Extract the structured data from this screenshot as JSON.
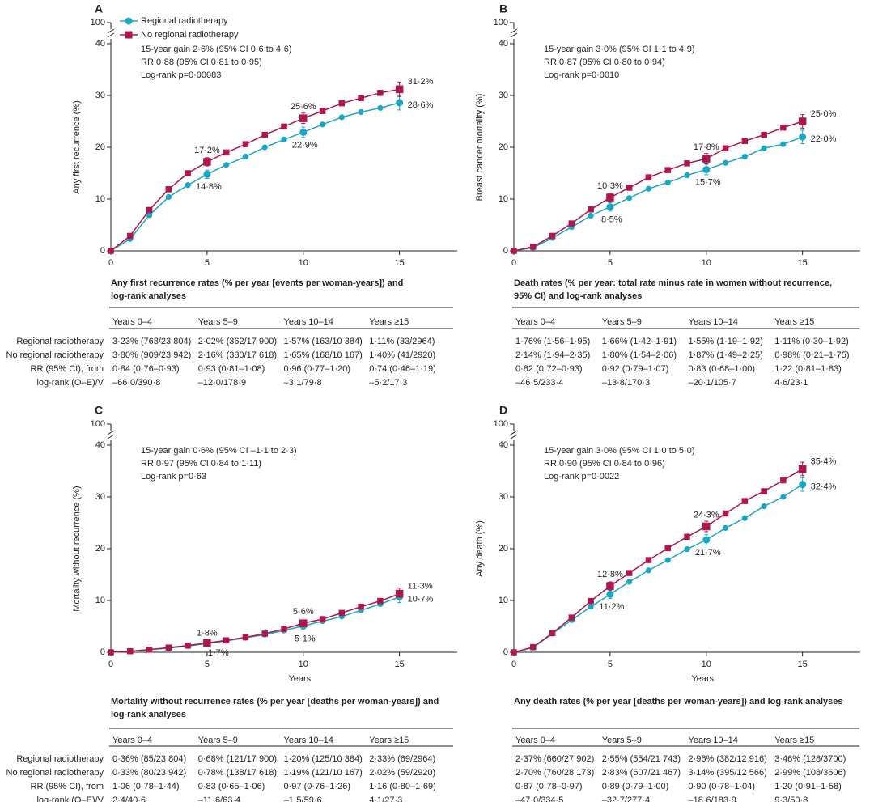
{
  "legend": {
    "series_a": "Regional radiotherapy",
    "series_b": "No regional radiotherapy"
  },
  "colors": {
    "series_a": "#1ba6c6",
    "series_b": "#b0154e",
    "text": "#231f20"
  },
  "tables_common": {
    "headers": [
      "Years 0–4",
      "Years 5–9",
      "Years 10–14",
      "Years ≥15"
    ],
    "row_labels": [
      "Regional radiotherapy",
      "No regional radiotherapy",
      "RR (95% CI), from",
      "log-rank (O–E)/V"
    ]
  },
  "chart_data": [
    {
      "panel": "A",
      "type": "line",
      "ylabel": "Any first recurrence (%)",
      "xlabel": "",
      "xlim": [
        0,
        18
      ],
      "ylim": [
        0,
        40
      ],
      "y_break_top": "100",
      "yticks": [
        0,
        10,
        20,
        30,
        40
      ],
      "xticks": [
        0,
        5,
        10,
        15
      ],
      "stats": [
        "15-year gain 2·6% (95% CI 0·6 to 4·6)",
        "RR 0·88 (95% CI 0·81 to 0·95)",
        "Log-rank p=0·00083"
      ],
      "series": [
        {
          "name": "Regional radiotherapy",
          "x": [
            0,
            1,
            2,
            3,
            4,
            5,
            6,
            7,
            8,
            9,
            10,
            11,
            12,
            13,
            14,
            15
          ],
          "values": [
            0,
            2.3,
            6.9,
            10.4,
            12.7,
            14.8,
            16.6,
            18.2,
            20.0,
            21.5,
            22.9,
            24.4,
            25.8,
            26.8,
            27.6,
            28.6
          ]
        },
        {
          "name": "No regional radiotherapy",
          "x": [
            0,
            1,
            2,
            3,
            4,
            5,
            6,
            7,
            8,
            9,
            10,
            11,
            12,
            13,
            14,
            15
          ],
          "values": [
            0,
            2.9,
            7.9,
            11.9,
            15.0,
            17.2,
            19.0,
            20.6,
            22.4,
            24.0,
            25.6,
            27.0,
            28.5,
            29.5,
            30.5,
            31.2
          ]
        }
      ],
      "annotations": [
        {
          "text": "17·2%",
          "x": 5,
          "y": 17.2,
          "series": 1
        },
        {
          "text": "14·8%",
          "x": 5,
          "y": 14.8,
          "series": 0
        },
        {
          "text": "25·6%",
          "x": 10,
          "y": 25.6,
          "series": 1
        },
        {
          "text": "22·9%",
          "x": 10,
          "y": 22.9,
          "series": 0
        },
        {
          "text": "31·2%",
          "x": 15,
          "y": 31.2,
          "series": 1
        },
        {
          "text": "28·6%",
          "x": 15,
          "y": 28.6,
          "series": 0
        }
      ],
      "table": {
        "title1": "Any first recurrence rates (% per year [events per woman-years]) and",
        "title2": "log-rank analyses",
        "rows": [
          [
            "3·23% (768/23 804)",
            "2·02% (362/17 900)",
            "1·57% (163/10 384)",
            "1·11% (33/2964)"
          ],
          [
            "3·80% (909/23 942)",
            "2·16% (380/17 618)",
            "1·65% (168/10 167)",
            "1·40% (41/2920)"
          ],
          [
            "0·84 (0·76–0·93)",
            "0·93 (0·81–1·08)",
            "0·96 (0·77–1·20)",
            "0·74 (0·46–1·19)"
          ],
          [
            "–66·0/390·8",
            "–12·0/178·9",
            "–3·1/79·8",
            "–5·2/17·3"
          ]
        ]
      }
    },
    {
      "panel": "B",
      "type": "line",
      "ylabel": "Breast cancer mortality (%)",
      "xlabel": "",
      "xlim": [
        0,
        18
      ],
      "ylim": [
        0,
        40
      ],
      "y_break_top": "100",
      "yticks": [
        0,
        10,
        20,
        30,
        40
      ],
      "xticks": [
        0,
        5,
        10,
        15
      ],
      "stats": [
        "15-year gain 3·0% (95% CI 1·1 to 4·9)",
        "RR 0·87 (95% CI 0·80 to 0·94)",
        "Log-rank p=0·0010"
      ],
      "series": [
        {
          "name": "Regional radiotherapy",
          "x": [
            0,
            1,
            2,
            3,
            4,
            5,
            6,
            7,
            8,
            9,
            10,
            11,
            12,
            13,
            14,
            15
          ],
          "values": [
            0,
            0.6,
            2.5,
            4.6,
            6.8,
            8.5,
            10.2,
            12.0,
            13.2,
            14.6,
            15.7,
            17.0,
            18.2,
            19.8,
            20.6,
            22.0
          ]
        },
        {
          "name": "No regional radiotherapy",
          "x": [
            0,
            1,
            2,
            3,
            4,
            5,
            6,
            7,
            8,
            9,
            10,
            11,
            12,
            13,
            14,
            15
          ],
          "values": [
            0,
            0.8,
            2.9,
            5.3,
            8.0,
            10.3,
            12.2,
            14.2,
            15.6,
            16.9,
            17.8,
            19.8,
            21.2,
            22.4,
            23.8,
            25.0
          ]
        }
      ],
      "annotations": [
        {
          "text": "10·3%",
          "x": 5,
          "y": 10.3,
          "series": 1
        },
        {
          "text": "8·5%",
          "x": 5,
          "y": 8.5,
          "series": 0
        },
        {
          "text": "17·8%",
          "x": 10,
          "y": 17.8,
          "series": 1
        },
        {
          "text": "15·7%",
          "x": 10,
          "y": 15.7,
          "series": 0
        },
        {
          "text": "25·0%",
          "x": 15,
          "y": 25.0,
          "series": 1
        },
        {
          "text": "22·0%",
          "x": 15,
          "y": 22.0,
          "series": 0
        }
      ],
      "table": {
        "title1": "Death rates (% per year: total rate minus rate in women without recurrence,",
        "title2": "95% CI) and log-rank analyses",
        "rows": [
          [
            "1·76% (1·56–1·95)",
            "1·66% (1·42–1·91)",
            "1·55% (1·19–1·92)",
            "1·11% (0·30–1·92)"
          ],
          [
            "2·14% (1·94–2·35)",
            "1·80% (1·54–2·06)",
            "1·87% (1·49–2·25)",
            "0·98% (0·21–1·75)"
          ],
          [
            "0·82 (0·72–0·93)",
            "0·92 (0·79–1·07)",
            "0·83 (0·68–1·00)",
            "1·22 (0·81–1·83)"
          ],
          [
            "–46·5/233·4",
            "–13·8/170·3",
            "–20·1/105·7",
            "4·6/23·1"
          ]
        ]
      }
    },
    {
      "panel": "C",
      "type": "line",
      "ylabel": "Mortality without recurrence (%)",
      "xlabel": "Years",
      "xlim": [
        0,
        18
      ],
      "ylim": [
        0,
        40
      ],
      "y_break_top": "100",
      "yticks": [
        0,
        10,
        20,
        30,
        40
      ],
      "xticks": [
        0,
        5,
        10,
        15
      ],
      "stats": [
        "15-year gain 0·6% (95% CI –1·1 to 2·3)",
        "RR 0·97 (95% CI 0·84 to 1·11)",
        "Log-rank p=0·63"
      ],
      "series": [
        {
          "name": "Regional radiotherapy",
          "x": [
            0,
            1,
            2,
            3,
            4,
            5,
            6,
            7,
            8,
            9,
            10,
            11,
            12,
            13,
            14,
            15
          ],
          "values": [
            0,
            0.2,
            0.5,
            0.8,
            1.2,
            1.7,
            2.2,
            2.8,
            3.4,
            4.2,
            5.1,
            6.0,
            6.9,
            8.1,
            9.3,
            10.7
          ]
        },
        {
          "name": "No regional radiotherapy",
          "x": [
            0,
            1,
            2,
            3,
            4,
            5,
            6,
            7,
            8,
            9,
            10,
            11,
            12,
            13,
            14,
            15
          ],
          "values": [
            0,
            0.2,
            0.5,
            0.9,
            1.3,
            1.8,
            2.3,
            2.9,
            3.6,
            4.5,
            5.6,
            6.4,
            7.6,
            8.8,
            9.9,
            11.3
          ]
        }
      ],
      "annotations": [
        {
          "text": "1·8%",
          "x": 5,
          "y": 1.8,
          "series": 1
        },
        {
          "text": "1·7%",
          "x": 5,
          "y": 1.7,
          "series": 0
        },
        {
          "text": "5·6%",
          "x": 10,
          "y": 5.6,
          "series": 1
        },
        {
          "text": "5·1%",
          "x": 10,
          "y": 5.1,
          "series": 0
        },
        {
          "text": "11·3%",
          "x": 15,
          "y": 11.3,
          "series": 1
        },
        {
          "text": "10·7%",
          "x": 15,
          "y": 10.7,
          "series": 0
        }
      ],
      "table": {
        "title1": "Mortality without recurrence rates (% per year [deaths per woman-years]) and",
        "title2": "log-rank analyses",
        "rows": [
          [
            "0·36% (85/23 804)",
            "0·68% (121/17 900)",
            "1·20% (125/10 384)",
            "2·33% (69/2964)"
          ],
          [
            "0·33% (80/23 942)",
            "0·78% (138/17 618)",
            "1·19% (121/10 167)",
            "2·02% (59/2920)"
          ],
          [
            "1·06 (0·78–1·44)",
            "0·83 (0·65–1·06)",
            "0·97 (0·76–1·26)",
            "1·16 (0·80–1·69)"
          ],
          [
            "2·4/40·6",
            "–11·6/63·4",
            "–1·5/59·6",
            "4·1/27·3"
          ]
        ]
      }
    },
    {
      "panel": "D",
      "type": "line",
      "ylabel": "Any death (%)",
      "xlabel": "Years",
      "xlim": [
        0,
        18
      ],
      "ylim": [
        0,
        40
      ],
      "y_break_top": "100",
      "yticks": [
        0,
        10,
        20,
        30,
        40
      ],
      "xticks": [
        0,
        5,
        10,
        15
      ],
      "stats": [
        "15-year gain 3·0% (95% CI 1·0 to 5·0)",
        "RR 0·90 (95% CI 0·84 to 0·96)",
        "Log-rank p=0·0022"
      ],
      "series": [
        {
          "name": "Regional radiotherapy",
          "x": [
            0,
            1,
            2,
            3,
            4,
            5,
            6,
            7,
            8,
            9,
            10,
            11,
            12,
            13,
            14,
            15
          ],
          "values": [
            0,
            0.9,
            3.6,
            6.2,
            8.8,
            11.2,
            13.6,
            15.8,
            17.8,
            19.9,
            21.7,
            24.0,
            25.9,
            28.2,
            30.0,
            32.4
          ]
        },
        {
          "name": "No regional radiotherapy",
          "x": [
            0,
            1,
            2,
            3,
            4,
            5,
            6,
            7,
            8,
            9,
            10,
            11,
            12,
            13,
            14,
            15
          ],
          "values": [
            0,
            1.0,
            3.7,
            6.7,
            9.9,
            12.8,
            15.3,
            17.8,
            20.1,
            22.3,
            24.3,
            26.8,
            29.2,
            31.1,
            33.2,
            35.4
          ]
        }
      ],
      "annotations": [
        {
          "text": "12·8%",
          "x": 5,
          "y": 12.8,
          "series": 1
        },
        {
          "text": "11·2%",
          "x": 5,
          "y": 11.2,
          "series": 0
        },
        {
          "text": "24·3%",
          "x": 10,
          "y": 24.3,
          "series": 1
        },
        {
          "text": "21·7%",
          "x": 10,
          "y": 21.7,
          "series": 0
        },
        {
          "text": "35·4%",
          "x": 15,
          "y": 35.4,
          "series": 1
        },
        {
          "text": "32·4%",
          "x": 15,
          "y": 32.4,
          "series": 0
        }
      ],
      "table": {
        "title1": "Any death rates (% per year [deaths per woman-years]) and log-rank analyses",
        "title2": "",
        "rows": [
          [
            "2·37% (660/27 902)",
            "2·55% (554/21 743)",
            "2·96% (382/12 916)",
            "3·46% (128/3700)"
          ],
          [
            "2·70% (760/28 173)",
            "2·83% (607/21 467)",
            "3·14% (395/12 566)",
            "2·99% (108/3606)"
          ],
          [
            "0·87 (0·78–0·97)",
            "0·89 (0·79–1·00)",
            "0·90 (0·78–1·04)",
            "1·20 (0·91–1·58)"
          ],
          [
            "–47·0/334·5",
            "–32·7/277·4",
            "–18·6/183·9",
            "9·3/50·8"
          ]
        ]
      }
    }
  ]
}
